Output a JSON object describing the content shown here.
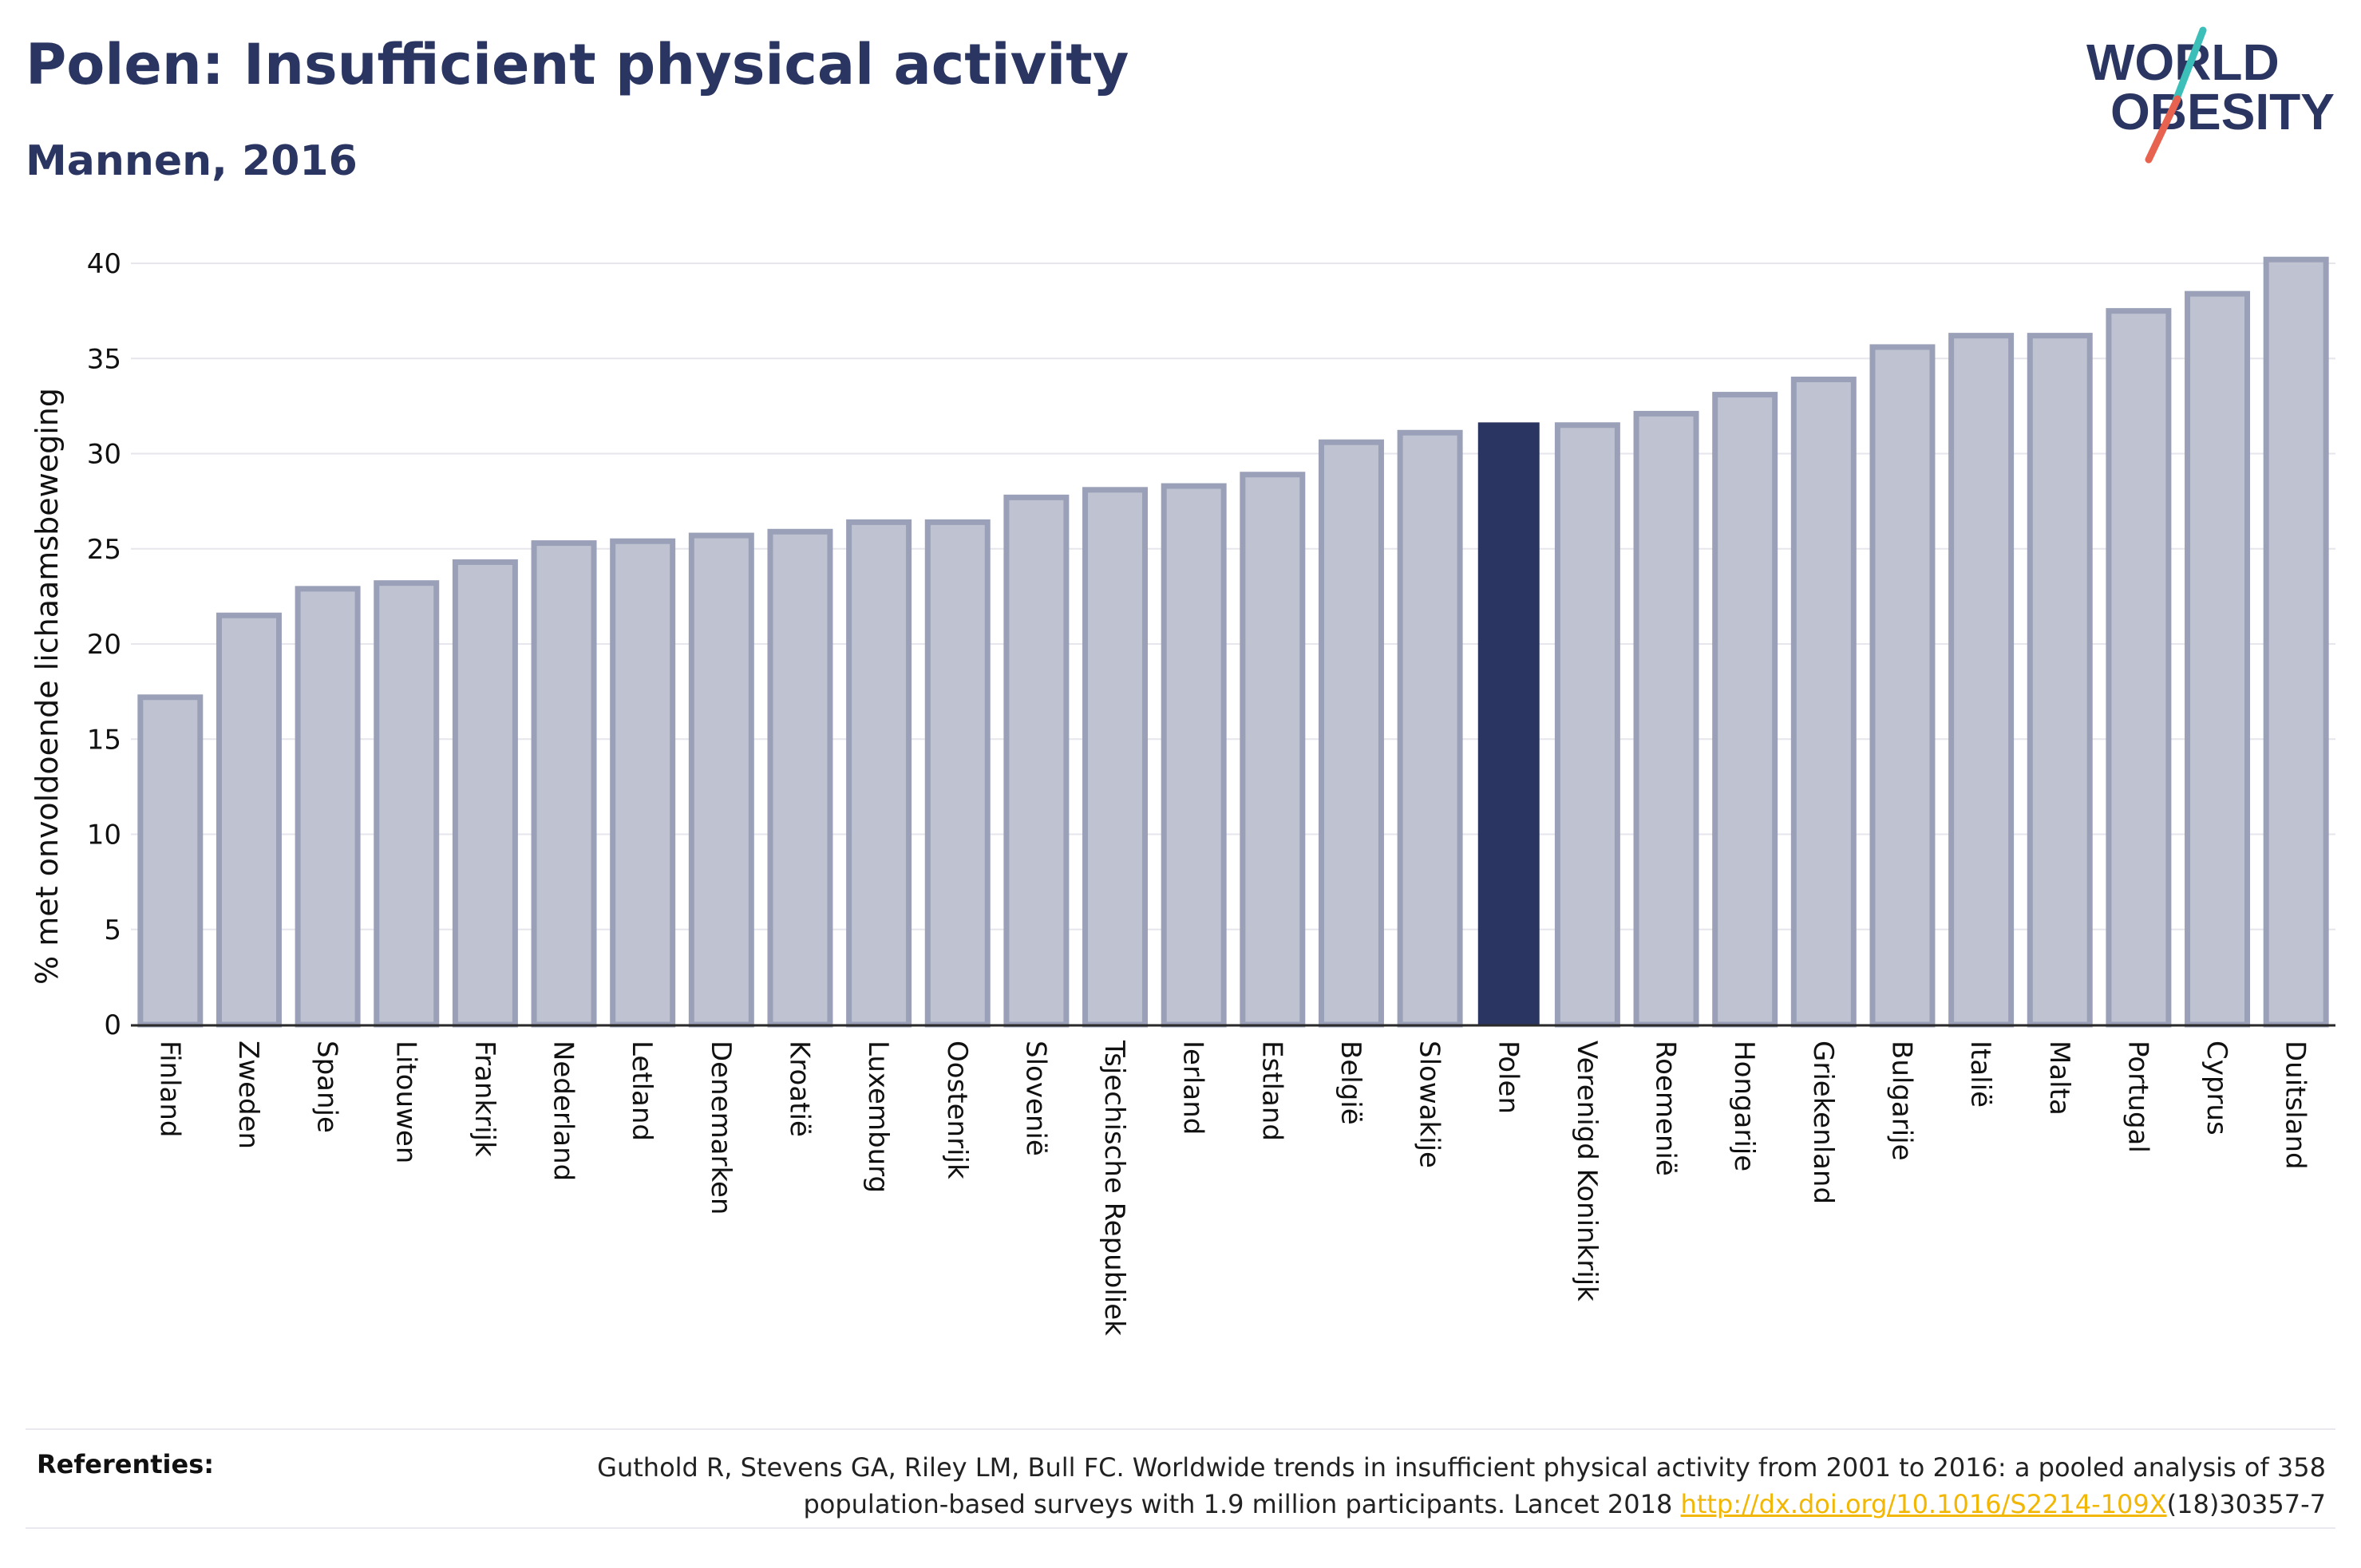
{
  "header": {
    "title": "Polen: Insufficient physical activity",
    "subtitle": "Mannen, 2016"
  },
  "logo": {
    "line1": "WORLD",
    "line2": "OBESITY",
    "accent_colors": [
      "#3bbfb8",
      "#e8634f"
    ]
  },
  "colors": {
    "bar_default": "#bfc3d1",
    "bar_stroke": "#9aa0b7",
    "bar_highlight": "#2a3561",
    "grid": "#e6e6ec",
    "axis": "#2a2a2a"
  },
  "chart_data": {
    "type": "bar",
    "ylabel": "% met onvoldoende lichaamsbeweging",
    "xlabel": "",
    "ylim": [
      0,
      40
    ],
    "yticks": [
      0,
      5,
      10,
      15,
      20,
      25,
      30,
      35,
      40
    ],
    "grid": true,
    "highlight": "Polen",
    "categories": [
      "Finland",
      "Zweden",
      "Spanje",
      "Litouwen",
      "Frankrijk",
      "Nederland",
      "Letland",
      "Denemarken",
      "Kroatië",
      "Luxemburg",
      "Oostenrijk",
      "Slovenië",
      "Tsjechische Republiek",
      "Ierland",
      "Estland",
      "België",
      "Slowakije",
      "Polen",
      "Verenigd Koninkrijk",
      "Roemenië",
      "Hongarije",
      "Griekenland",
      "Bulgarije",
      "Italië",
      "Malta",
      "Portugal",
      "Cyprus",
      "Duitsland"
    ],
    "values": [
      17.2,
      21.5,
      22.9,
      23.2,
      24.3,
      25.3,
      25.4,
      25.7,
      25.9,
      26.4,
      26.4,
      27.7,
      28.1,
      28.3,
      28.9,
      30.6,
      31.1,
      31.6,
      31.5,
      32.1,
      33.1,
      33.9,
      35.6,
      36.2,
      36.2,
      37.5,
      38.4,
      40.2
    ]
  },
  "references": {
    "label": "Referenties:",
    "text_before": "Guthold R, Stevens GA, Riley LM, Bull FC. Worldwide trends in insufficient physical activity from 2001 to 2016: a pooled analysis of 358 population-based surveys with 1.9 million participants. Lancet 2018 ",
    "link": "http://dx.doi.org/10.1016/S2214-109X",
    "text_after": "(18)30357-7"
  }
}
